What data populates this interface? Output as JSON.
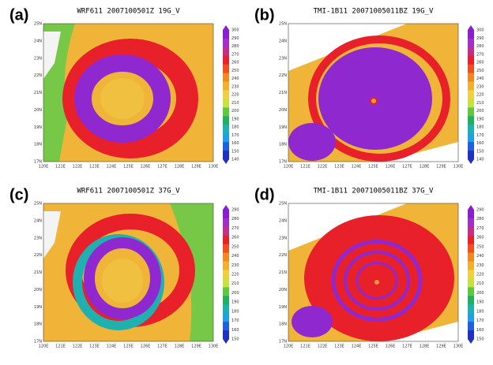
{
  "panels": [
    {
      "label": "(a)",
      "title": "WRF611 2007100501Z 19G_V",
      "colorbar_ticks": [
        "300",
        "290",
        "280",
        "270",
        "260",
        "250",
        "240",
        "230",
        "220",
        "210",
        "200",
        "190",
        "180",
        "170",
        "160",
        "150",
        "140"
      ],
      "xticks": [
        "120E",
        "121E",
        "122E",
        "123E",
        "124E",
        "125E",
        "126E",
        "127E",
        "128E",
        "129E",
        "130E"
      ],
      "yticks": [
        "25N",
        "24N",
        "23N",
        "22N",
        "21N",
        "20N",
        "19N",
        "18N",
        "17N"
      ]
    },
    {
      "label": "(b)",
      "title": "TMI-1B11 20071005011BZ 19G_V",
      "colorbar_ticks": [
        "300",
        "290",
        "280",
        "270",
        "260",
        "250",
        "240",
        "230",
        "220",
        "210",
        "200",
        "190",
        "180",
        "170",
        "160",
        "150",
        "140"
      ],
      "xticks": [
        "120E",
        "121E",
        "122E",
        "123E",
        "124E",
        "125E",
        "126E",
        "127E",
        "128E",
        "129E",
        "130E"
      ],
      "yticks": [
        "25N",
        "24N",
        "23N",
        "22N",
        "21N",
        "20N",
        "19N",
        "18N",
        "17N"
      ]
    },
    {
      "label": "(c)",
      "title": "WRF611 2007100501Z 37G_V",
      "colorbar_ticks": [
        "290",
        "280",
        "270",
        "260",
        "250",
        "240",
        "230",
        "220",
        "210",
        "200",
        "190",
        "180",
        "170",
        "160",
        "150"
      ],
      "xticks": [
        "120E",
        "121E",
        "122E",
        "123E",
        "124E",
        "125E",
        "126E",
        "127E",
        "128E",
        "129E",
        "130E"
      ],
      "yticks": [
        "25N",
        "24N",
        "23N",
        "22N",
        "21N",
        "20N",
        "19N",
        "18N",
        "17N"
      ]
    },
    {
      "label": "(d)",
      "title": "TMI-1B11 20071005011BZ 37G_V",
      "colorbar_ticks": [
        "290",
        "280",
        "270",
        "260",
        "250",
        "240",
        "230",
        "220",
        "210",
        "200",
        "190",
        "180",
        "170",
        "160",
        "150"
      ],
      "xticks": [
        "120E",
        "121E",
        "122E",
        "123E",
        "124E",
        "125E",
        "126E",
        "127E",
        "128E",
        "129E",
        "130E"
      ],
      "yticks": [
        "25N",
        "24N",
        "23N",
        "22N",
        "21N",
        "20N",
        "19N",
        "18N",
        "17N"
      ]
    }
  ]
}
